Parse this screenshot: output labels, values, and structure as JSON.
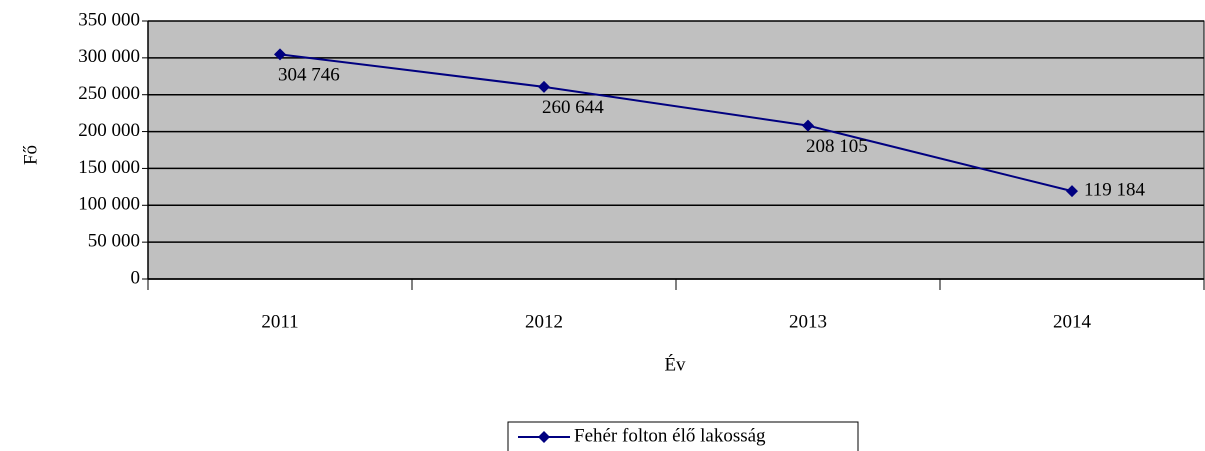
{
  "chart_data": {
    "type": "line",
    "categories": [
      "2011",
      "2012",
      "2013",
      "2014"
    ],
    "series": [
      {
        "name": "Fehér folton élő lakosság",
        "color": "#000080",
        "values": [
          304746,
          260644,
          208105,
          119184
        ],
        "value_labels": [
          "304 746",
          "260 644",
          "208 105",
          "119 184"
        ]
      }
    ],
    "xlabel": "Év",
    "ylabel": "Fő",
    "ylim": [
      0,
      350000
    ],
    "yticks": [
      {
        "value": 0,
        "label": "0"
      },
      {
        "value": 50000,
        "label": "50 000"
      },
      {
        "value": 100000,
        "label": "100 000"
      },
      {
        "value": 150000,
        "label": "150 000"
      },
      {
        "value": 200000,
        "label": "200 000"
      },
      {
        "value": 250000,
        "label": "250 000"
      },
      {
        "value": 300000,
        "label": "300 000"
      },
      {
        "value": 350000,
        "label": "350 000"
      }
    ],
    "grid": true,
    "legend": "bottom",
    "plot_background": "#c0c0c0"
  }
}
